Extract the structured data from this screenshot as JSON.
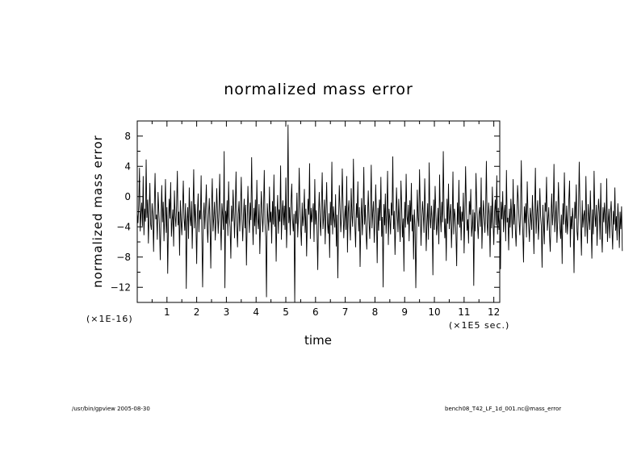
{
  "chart_data": {
    "type": "line",
    "title": "normalized mass error",
    "xlabel": "time",
    "ylabel": "normalized mass error",
    "x_scale_label": "(×1E5 sec.)",
    "y_scale_label": "(×1E-16)",
    "xlim": [
      0,
      12.2
    ],
    "ylim": [
      -14,
      10
    ],
    "x_ticks": [
      1,
      2,
      3,
      4,
      5,
      6,
      7,
      8,
      9,
      10,
      11,
      12
    ],
    "y_ticks": [
      8,
      4,
      0,
      -4,
      -8,
      -12
    ],
    "grid": false,
    "series": [
      {
        "x_start": 0,
        "x_step": 0.025,
        "values": [
          -2.2,
          -3.5,
          -1.1,
          3.8,
          -4.6,
          -2.3,
          -0.8,
          -3.9,
          2.7,
          -5.1,
          -1.6,
          -3.3,
          4.9,
          -2.8,
          -0.4,
          -6.2,
          -2.1,
          1.8,
          -3.7,
          -4.4,
          -0.9,
          -2.6,
          -7.3,
          -1.2,
          3.1,
          -3.0,
          -2.4,
          -5.7,
          0.6,
          -1.8,
          -4.1,
          -8.4,
          -2.7,
          1.5,
          -3.4,
          -0.7,
          -5.9,
          -2.2,
          2.3,
          -4.8,
          -1.4,
          -10.2,
          -3.6,
          -0.3,
          -2.9,
          1.9,
          -5.3,
          -3.1,
          -1.7,
          -6.6,
          0.8,
          -2.5,
          -4.0,
          -1.1,
          3.4,
          -3.8,
          -2.0,
          -7.8,
          -0.5,
          -3.2,
          -5.1,
          -1.6,
          2.1,
          -2.9,
          -4.5,
          -0.9,
          -12.2,
          -3.3,
          -1.4,
          -5.6,
          1.2,
          -2.7,
          -3.9,
          -0.6,
          -6.9,
          -2.3,
          3.6,
          -4.2,
          -1.0,
          -3.5,
          -8.9,
          -2.1,
          0.4,
          -4.7,
          -1.8,
          -3.0,
          2.8,
          -5.4,
          -12.0,
          -2.6,
          -0.8,
          -4.3,
          -1.5,
          1.6,
          -3.7,
          -6.1,
          -2.4,
          -0.2,
          -3.9,
          -9.5,
          -1.3,
          2.4,
          -4.6,
          -2.8,
          -0.7,
          -5.8,
          -3.1,
          1.1,
          -2.2,
          -4.9,
          -1.6,
          3.0,
          -3.4,
          -7.1,
          -0.9,
          -2.5,
          -4.4,
          6.0,
          -12.1,
          -1.9,
          -3.6,
          -0.5,
          -5.2,
          2.0,
          -2.7,
          -4.1,
          -8.2,
          -1.2,
          -3.3,
          0.9,
          -2.0,
          -5.5,
          -1.4,
          3.3,
          -3.8,
          -6.7,
          -2.3,
          -0.6,
          -4.6,
          -1.7,
          2.6,
          -3.0,
          -5.9,
          -2.5,
          -0.3,
          -4.2,
          -1.1,
          -9.1,
          -3.5,
          1.4,
          -2.4,
          -4.8,
          -0.8,
          -3.1,
          5.2,
          -2.6,
          -6.4,
          -1.5,
          -3.9,
          -0.4,
          -5.0,
          2.2,
          -2.9,
          -4.3,
          -1.0,
          -7.6,
          -3.2,
          0.7,
          -2.1,
          -4.7,
          -1.8,
          3.5,
          -3.6,
          -5.3,
          -13.3,
          -0.9,
          -2.8,
          -4.5,
          1.3,
          -3.4,
          -2.0,
          -6.2,
          -0.6,
          -3.7,
          2.9,
          -4.0,
          -1.3,
          -8.6,
          -2.6,
          0.2,
          -4.9,
          -1.7,
          -3.3,
          4.1,
          -5.7,
          -2.2,
          -0.5,
          -3.8,
          -1.2,
          -4.4,
          2.5,
          -6.8,
          -2.9,
          9.5,
          -3.5,
          -1.4,
          -5.1,
          -0.7,
          1.7,
          -3.0,
          -4.6,
          -2.3,
          -14.0,
          -1.9,
          -3.6,
          0.5,
          -5.4,
          -2.7,
          3.8,
          -1.1,
          -4.2,
          -6.5,
          -0.8,
          -3.9,
          -2.5,
          1.0,
          -4.8,
          -1.6,
          -7.9,
          -3.1,
          -0.3,
          -2.4,
          4.4,
          -5.6,
          -1.5,
          -3.4,
          -2.1,
          -0.9,
          -6.0,
          2.3,
          -3.7,
          -1.8,
          -4.5,
          -9.7,
          -2.6,
          0.6,
          -3.2,
          -5.2,
          -1.0,
          3.2,
          -4.3,
          -2.8,
          -0.4,
          -6.3,
          -1.9,
          1.9,
          -3.5,
          -4.9,
          -2.2,
          -8.1,
          -0.7,
          -3.8,
          4.6,
          -5.0,
          -1.3,
          -2.9,
          -4.1,
          0.3,
          -6.6,
          -2.4,
          -10.8,
          -3.3,
          1.5,
          -1.6,
          -4.7,
          -2.7,
          3.7,
          -0.8,
          -5.5,
          -3.0,
          -1.2,
          -4.4,
          2.7,
          -7.4,
          -2.0,
          -0.5,
          -3.6,
          -5.8,
          1.1,
          -2.5,
          -4.0,
          5.0,
          -1.7,
          -3.9,
          -6.7,
          -0.9,
          -2.8,
          2.0,
          -4.6,
          -1.4,
          -9.3,
          -3.4,
          -0.2,
          -5.1,
          -2.3,
          3.9,
          -3.7,
          -1.1,
          -4.8,
          -7.0,
          -2.6,
          0.8,
          -3.1,
          -5.6,
          -1.8,
          4.2,
          -4.2,
          -2.1,
          -0.6,
          -6.1,
          -3.5,
          1.6,
          -2.4,
          -8.8,
          -1.5,
          -4.5,
          -0.4,
          -3.2,
          2.6,
          -5.3,
          -2.7,
          -12.0,
          -1.0,
          -3.8,
          0.4,
          -4.9,
          -2.0,
          3.4,
          -6.4,
          -1.6,
          -3.0,
          -5.0,
          -0.8,
          -2.5,
          5.3,
          -4.3,
          -1.9,
          -7.7,
          -3.6,
          1.2,
          -2.2,
          -4.7,
          -0.3,
          -3.4,
          -6.0,
          2.1,
          -1.3,
          -5.4,
          -2.9,
          -9.9,
          -0.7,
          -4.1,
          3.0,
          -2.6,
          -3.7,
          -1.1,
          -5.9,
          -0.5,
          -3.3,
          1.8,
          -4.6,
          -2.4,
          -8.3,
          -1.7,
          -3.9,
          -12.1,
          -5.2,
          0.9,
          -2.8,
          -4.0,
          3.6,
          -1.4,
          -6.5,
          -3.1,
          -0.6,
          -2.3,
          -4.8,
          2.4,
          -1.9,
          -7.2,
          -3.5,
          -0.9,
          -5.7,
          4.5,
          -2.7,
          -4.2,
          -1.2,
          -3.0,
          -10.4,
          -0.4,
          -4.4,
          1.4,
          -2.1,
          -5.1,
          -3.8,
          -1.5,
          -6.3,
          2.9,
          -2.5,
          -4.7,
          -0.7,
          -3.4,
          6.0,
          -1.8,
          -5.5,
          -2.9,
          -8.5,
          -0.3,
          -3.6,
          1.7,
          -4.3,
          -2.2,
          -1.0,
          -6.8,
          -3.2,
          3.3,
          -5.0,
          -1.6,
          -2.6,
          -4.9,
          -9.2,
          -0.8,
          -3.7,
          2.2,
          -4.1,
          -1.3,
          -5.8,
          -2.0,
          -3.3,
          0.5,
          -7.5,
          -2.8,
          4.0,
          -1.1,
          -4.5,
          -3.0,
          -6.2,
          -0.6,
          -2.4,
          1.0,
          -5.3,
          -3.9,
          -1.7,
          -11.8,
          -2.1,
          -4.6,
          3.1,
          -0.9,
          -3.5,
          -5.6,
          -2.3,
          -1.4,
          -4.0,
          2.5,
          -6.9,
          -3.1,
          -0.5,
          -2.7,
          -4.8,
          -1.9,
          4.7,
          -3.6,
          -5.2,
          -0.8,
          -2.5,
          -8.0,
          -1.2,
          -4.2,
          1.3,
          -3.3,
          -6.4,
          -2.0,
          -0.4,
          -3.8,
          2.8,
          -5.0,
          -1.5,
          -4.4,
          -2.6,
          -9.6,
          -0.7,
          -3.0,
          0.7,
          -4.7,
          -2.2,
          -1.1,
          -5.9,
          3.5,
          -3.4,
          -2.8,
          -7.1,
          -1.6,
          -4.1,
          -0.3,
          -2.5,
          -5.5,
          2.3,
          -3.7,
          -1.0,
          -4.3,
          -6.6,
          -2.9,
          1.5,
          -0.6,
          -3.2,
          -5.1,
          -1.8,
          4.8,
          -2.4,
          -4.6,
          -8.7,
          -1.3,
          -3.5,
          -0.9,
          -5.4,
          2.0,
          -2.1,
          -3.9,
          -6.0,
          -1.5,
          -2.7,
          -4.4,
          0.2,
          -3.1,
          -7.6,
          -1.7,
          3.8,
          -4.9,
          -2.3,
          -0.5,
          -5.7,
          -3.4,
          1.1,
          -2.6,
          -4.0,
          -9.4,
          -1.1,
          -3.6,
          -6.3,
          -0.8,
          -2.0,
          2.6,
          -4.5,
          -3.0,
          -1.4,
          -5.2,
          -7.3,
          -2.5,
          0.4,
          -3.8,
          -1.9,
          4.3,
          -4.7,
          -2.8,
          -0.6,
          -6.1,
          -3.3,
          1.9,
          -1.6,
          -4.2,
          -5.6,
          -2.4,
          -8.9,
          -0.9,
          -3.7,
          3.2,
          -2.2,
          -4.8,
          -1.2,
          -5.0,
          -3.1,
          -0.4,
          2.1,
          -6.7,
          -2.6,
          -4.3,
          -1.5,
          -3.5,
          -10.1,
          -0.7,
          -2.9,
          1.6,
          -4.6,
          -5.8,
          -2.0,
          4.6,
          -1.3,
          -3.9,
          -7.8,
          -0.5,
          -4.1,
          -2.5,
          -1.8,
          -5.3,
          2.7,
          -3.2,
          -6.2,
          -1.0,
          -2.7,
          -4.4,
          0.8,
          -3.6,
          -8.2,
          -1.7,
          -5.0,
          3.4,
          -2.3,
          -4.0,
          -1.1,
          -6.5,
          -3.0,
          -0.3,
          -2.1,
          -5.7,
          1.8,
          -4.7,
          -7.4,
          -1.4,
          -3.4,
          -0.8,
          -2.8,
          -4.9,
          2.4,
          -6.0,
          -3.3,
          -1.6,
          -5.5,
          -2.2,
          -0.6,
          -4.2,
          -7.0,
          -1.9,
          -3.7,
          1.2,
          -4.5,
          -2.6,
          -5.8,
          -0.9,
          -3.1,
          -6.8,
          -2.0,
          -4.3,
          -1.3,
          -7.2
        ]
      }
    ]
  },
  "footer": {
    "left": "/usr/bin/gpview  2005-08-30",
    "right": "bench08_T42_LF_1d_001.nc@mass_error"
  }
}
